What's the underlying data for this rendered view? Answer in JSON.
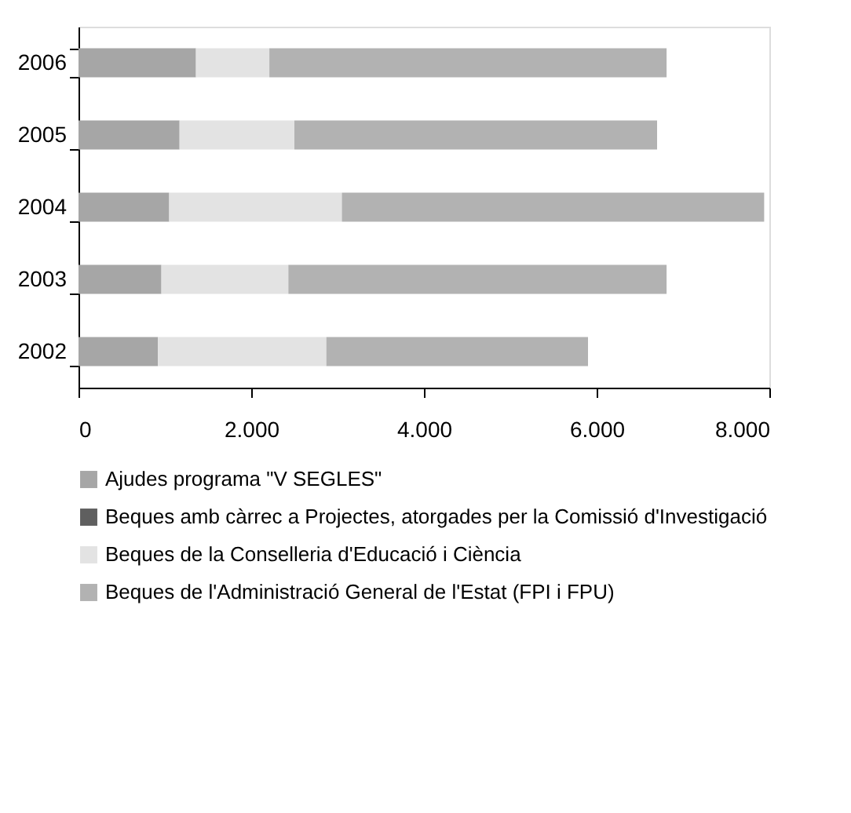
{
  "chart_data": {
    "type": "bar",
    "orientation": "horizontal",
    "stacked": true,
    "categories": [
      "2006",
      "2005",
      "2004",
      "2003",
      "2002"
    ],
    "series": [
      {
        "name": "Ajudes programa \"V SEGLES\"",
        "color": "#a6a6a6",
        "values": [
          1360,
          1170,
          1050,
          960,
          920
        ]
      },
      {
        "name": "Beques amb càrrec a Projectes, atorgades per la Comissió d'Investigació",
        "color": "#5f5f5f",
        "values": [
          0,
          0,
          0,
          0,
          0
        ]
      },
      {
        "name": "Beques de la Conselleria d'Educació i Ciència",
        "color": "#e3e3e3",
        "values": [
          850,
          1330,
          2000,
          1470,
          1950
        ]
      },
      {
        "name": "Beques de l'Administració General de l'Estat (FPI i FPU)",
        "color": "#b2b2b2",
        "values": [
          4600,
          4200,
          4890,
          4380,
          3030
        ]
      }
    ],
    "xlim": [
      0,
      8000
    ],
    "xticks": [
      0,
      {
        "value": 2000,
        "label": "2.000"
      },
      {
        "value": 4000,
        "label": "4.000"
      },
      {
        "value": 6000,
        "label": "6.000"
      },
      {
        "value": 8000,
        "label": "8.000"
      }
    ],
    "grid": false,
    "legend": "bottom"
  }
}
